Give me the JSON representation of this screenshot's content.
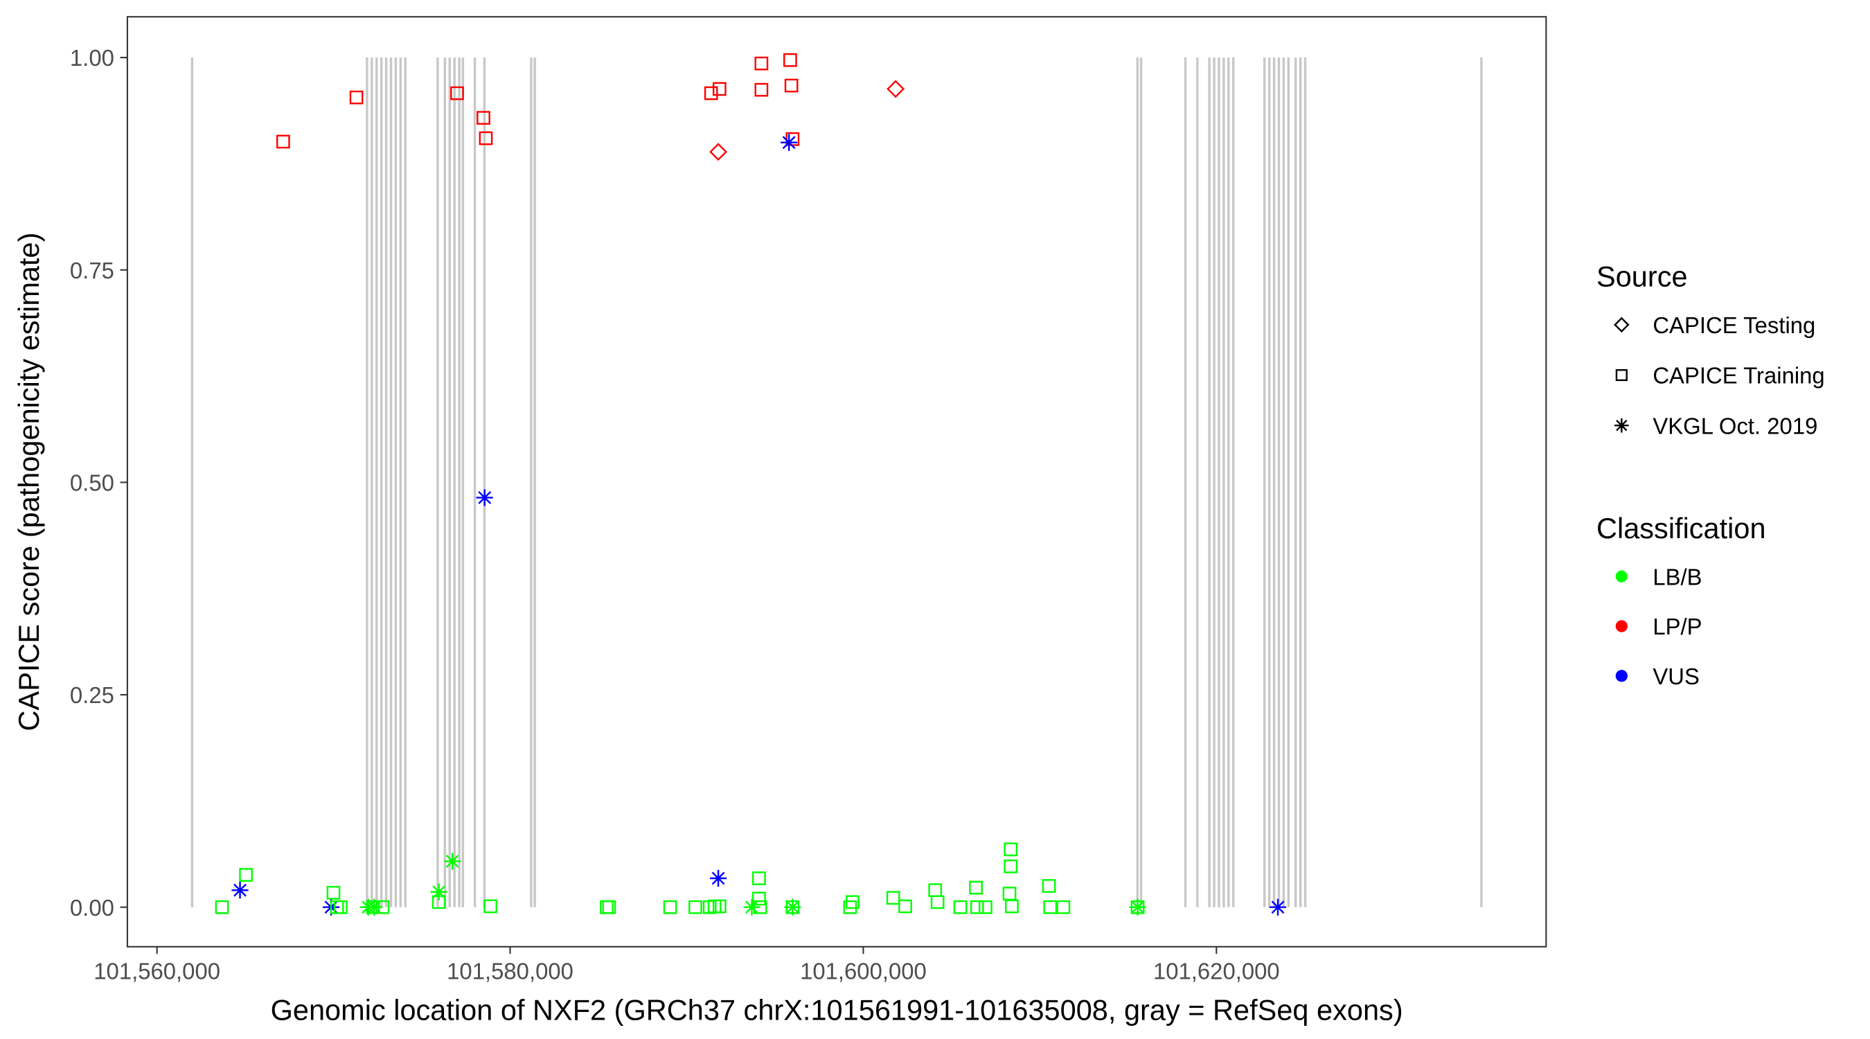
{
  "chart_data": {
    "type": "scatter",
    "title": "",
    "xlabel": "Genomic location of NXF2 (GRCh37 chrX:101561991-101635008, gray = RefSeq exons)",
    "ylabel": "CAPICE score (pathogenicity estimate)",
    "xlim": [
      101558000,
      101639000
    ],
    "ylim": [
      -0.047,
      1.05
    ],
    "x_ticks": [
      101560000,
      101580000,
      101600000,
      101620000
    ],
    "x_tick_labels": [
      "101,560,000",
      "101,580,000",
      "101,600,000",
      "101,620,000"
    ],
    "y_ticks": [
      0,
      0.25,
      0.5,
      0.75,
      1.0
    ],
    "y_tick_labels": [
      "0.00",
      "0.25",
      "0.50",
      "0.75",
      "1.00"
    ],
    "grid": false,
    "exon_color": "#c8c8c8",
    "exons": [
      101561991,
      101571896,
      101572167,
      101572439,
      101572710,
      101572982,
      101573253,
      101573524,
      101573796,
      101574067,
      101575899,
      101576307,
      101576578,
      101576850,
      101577121,
      101577325,
      101578003,
      101578546,
      101581193,
      101581396,
      101615529,
      101615733,
      101618244,
      101618922,
      101619601,
      101619872,
      101620144,
      101620415,
      101620687,
      101620958,
      101622723,
      101622994,
      101623266,
      101623537,
      101623809,
      101624080,
      101624487,
      101624759,
      101625030,
      101635008
    ],
    "legend": {
      "placement": "right",
      "source_title": "Source",
      "source_items": [
        {
          "label": "CAPICE Testing",
          "shape": "diamond"
        },
        {
          "label": "CAPICE Training",
          "shape": "square"
        },
        {
          "label": "VKGL Oct. 2019",
          "shape": "asterisk"
        }
      ],
      "class_title": "Classification",
      "class_items": [
        {
          "label": "LB/B",
          "color": "#00ff00"
        },
        {
          "label": "LP/P",
          "color": "#ff0000"
        },
        {
          "label": "VUS",
          "color": "#0000ff"
        }
      ]
    },
    "series": [
      {
        "source": "CAPICE Training",
        "class": "LP/P",
        "points": [
          [
            101567146,
            0.901
          ],
          [
            101571296,
            0.953
          ],
          [
            101576996,
            0.958
          ],
          [
            101578489,
            0.929
          ],
          [
            101578625,
            0.905
          ],
          [
            101591382,
            0.958
          ],
          [
            101591857,
            0.963
          ],
          [
            101594232,
            0.962
          ],
          [
            101594232,
            0.993
          ],
          [
            101595861,
            0.997
          ],
          [
            101595929,
            0.967
          ],
          [
            101595997,
            0.904
          ]
        ]
      },
      {
        "source": "CAPICE Testing",
        "class": "LP/P",
        "points": [
          [
            101591789,
            0.889
          ],
          [
            101601832,
            0.963
          ]
        ]
      },
      {
        "source": "VKGL Oct. 2019",
        "class": "VUS",
        "points": [
          [
            101595793,
            0.9
          ],
          [
            101578557,
            0.482
          ],
          [
            101564703,
            0.02
          ],
          [
            101569860,
            0.0
          ],
          [
            101591789,
            0.034
          ],
          [
            101623480,
            0.0
          ]
        ]
      },
      {
        "source": "CAPICE Training",
        "class": "LB/B",
        "points": [
          [
            101563683,
            0.0
          ],
          [
            101565040,
            0.038
          ],
          [
            101569996,
            0.017
          ],
          [
            101570200,
            0.0
          ],
          [
            101570403,
            0.0
          ],
          [
            101572235,
            0.0
          ],
          [
            101572778,
            0.0
          ],
          [
            101575967,
            0.006
          ],
          [
            101578885,
            0.001
          ],
          [
            101585468,
            0.0
          ],
          [
            101585604,
            0.0
          ],
          [
            101589064,
            0.0
          ],
          [
            101590489,
            0.0
          ],
          [
            101591303,
            0.0
          ],
          [
            101591575,
            0.001
          ],
          [
            101591857,
            0.001
          ],
          [
            101594096,
            0.034
          ],
          [
            101594096,
            0.01
          ],
          [
            101594164,
            0.0
          ],
          [
            101595997,
            0.0
          ],
          [
            101599254,
            0.0
          ],
          [
            101599390,
            0.006
          ],
          [
            101601697,
            0.011
          ],
          [
            101602376,
            0.001
          ],
          [
            101604072,
            0.02
          ],
          [
            101604208,
            0.006
          ],
          [
            101605497,
            0.0
          ],
          [
            101606379,
            0.023
          ],
          [
            101606447,
            0.0
          ],
          [
            101606922,
            0.0
          ],
          [
            101608347,
            0.068
          ],
          [
            101608347,
            0.048
          ],
          [
            101608279,
            0.016
          ],
          [
            101608415,
            0.001
          ],
          [
            101610519,
            0.025
          ],
          [
            101610586,
            0.0
          ],
          [
            101611333,
            0.0
          ],
          [
            101615540,
            0.0
          ]
        ]
      },
      {
        "source": "VKGL Oct. 2019",
        "class": "LB/B",
        "points": [
          [
            101576732,
            0.054
          ],
          [
            101575967,
            0.018
          ],
          [
            101571964,
            0.0
          ],
          [
            101572303,
            0.0
          ],
          [
            101593689,
            0.0
          ],
          [
            101595997,
            0.0
          ],
          [
            101615540,
            0.0
          ]
        ]
      }
    ]
  }
}
